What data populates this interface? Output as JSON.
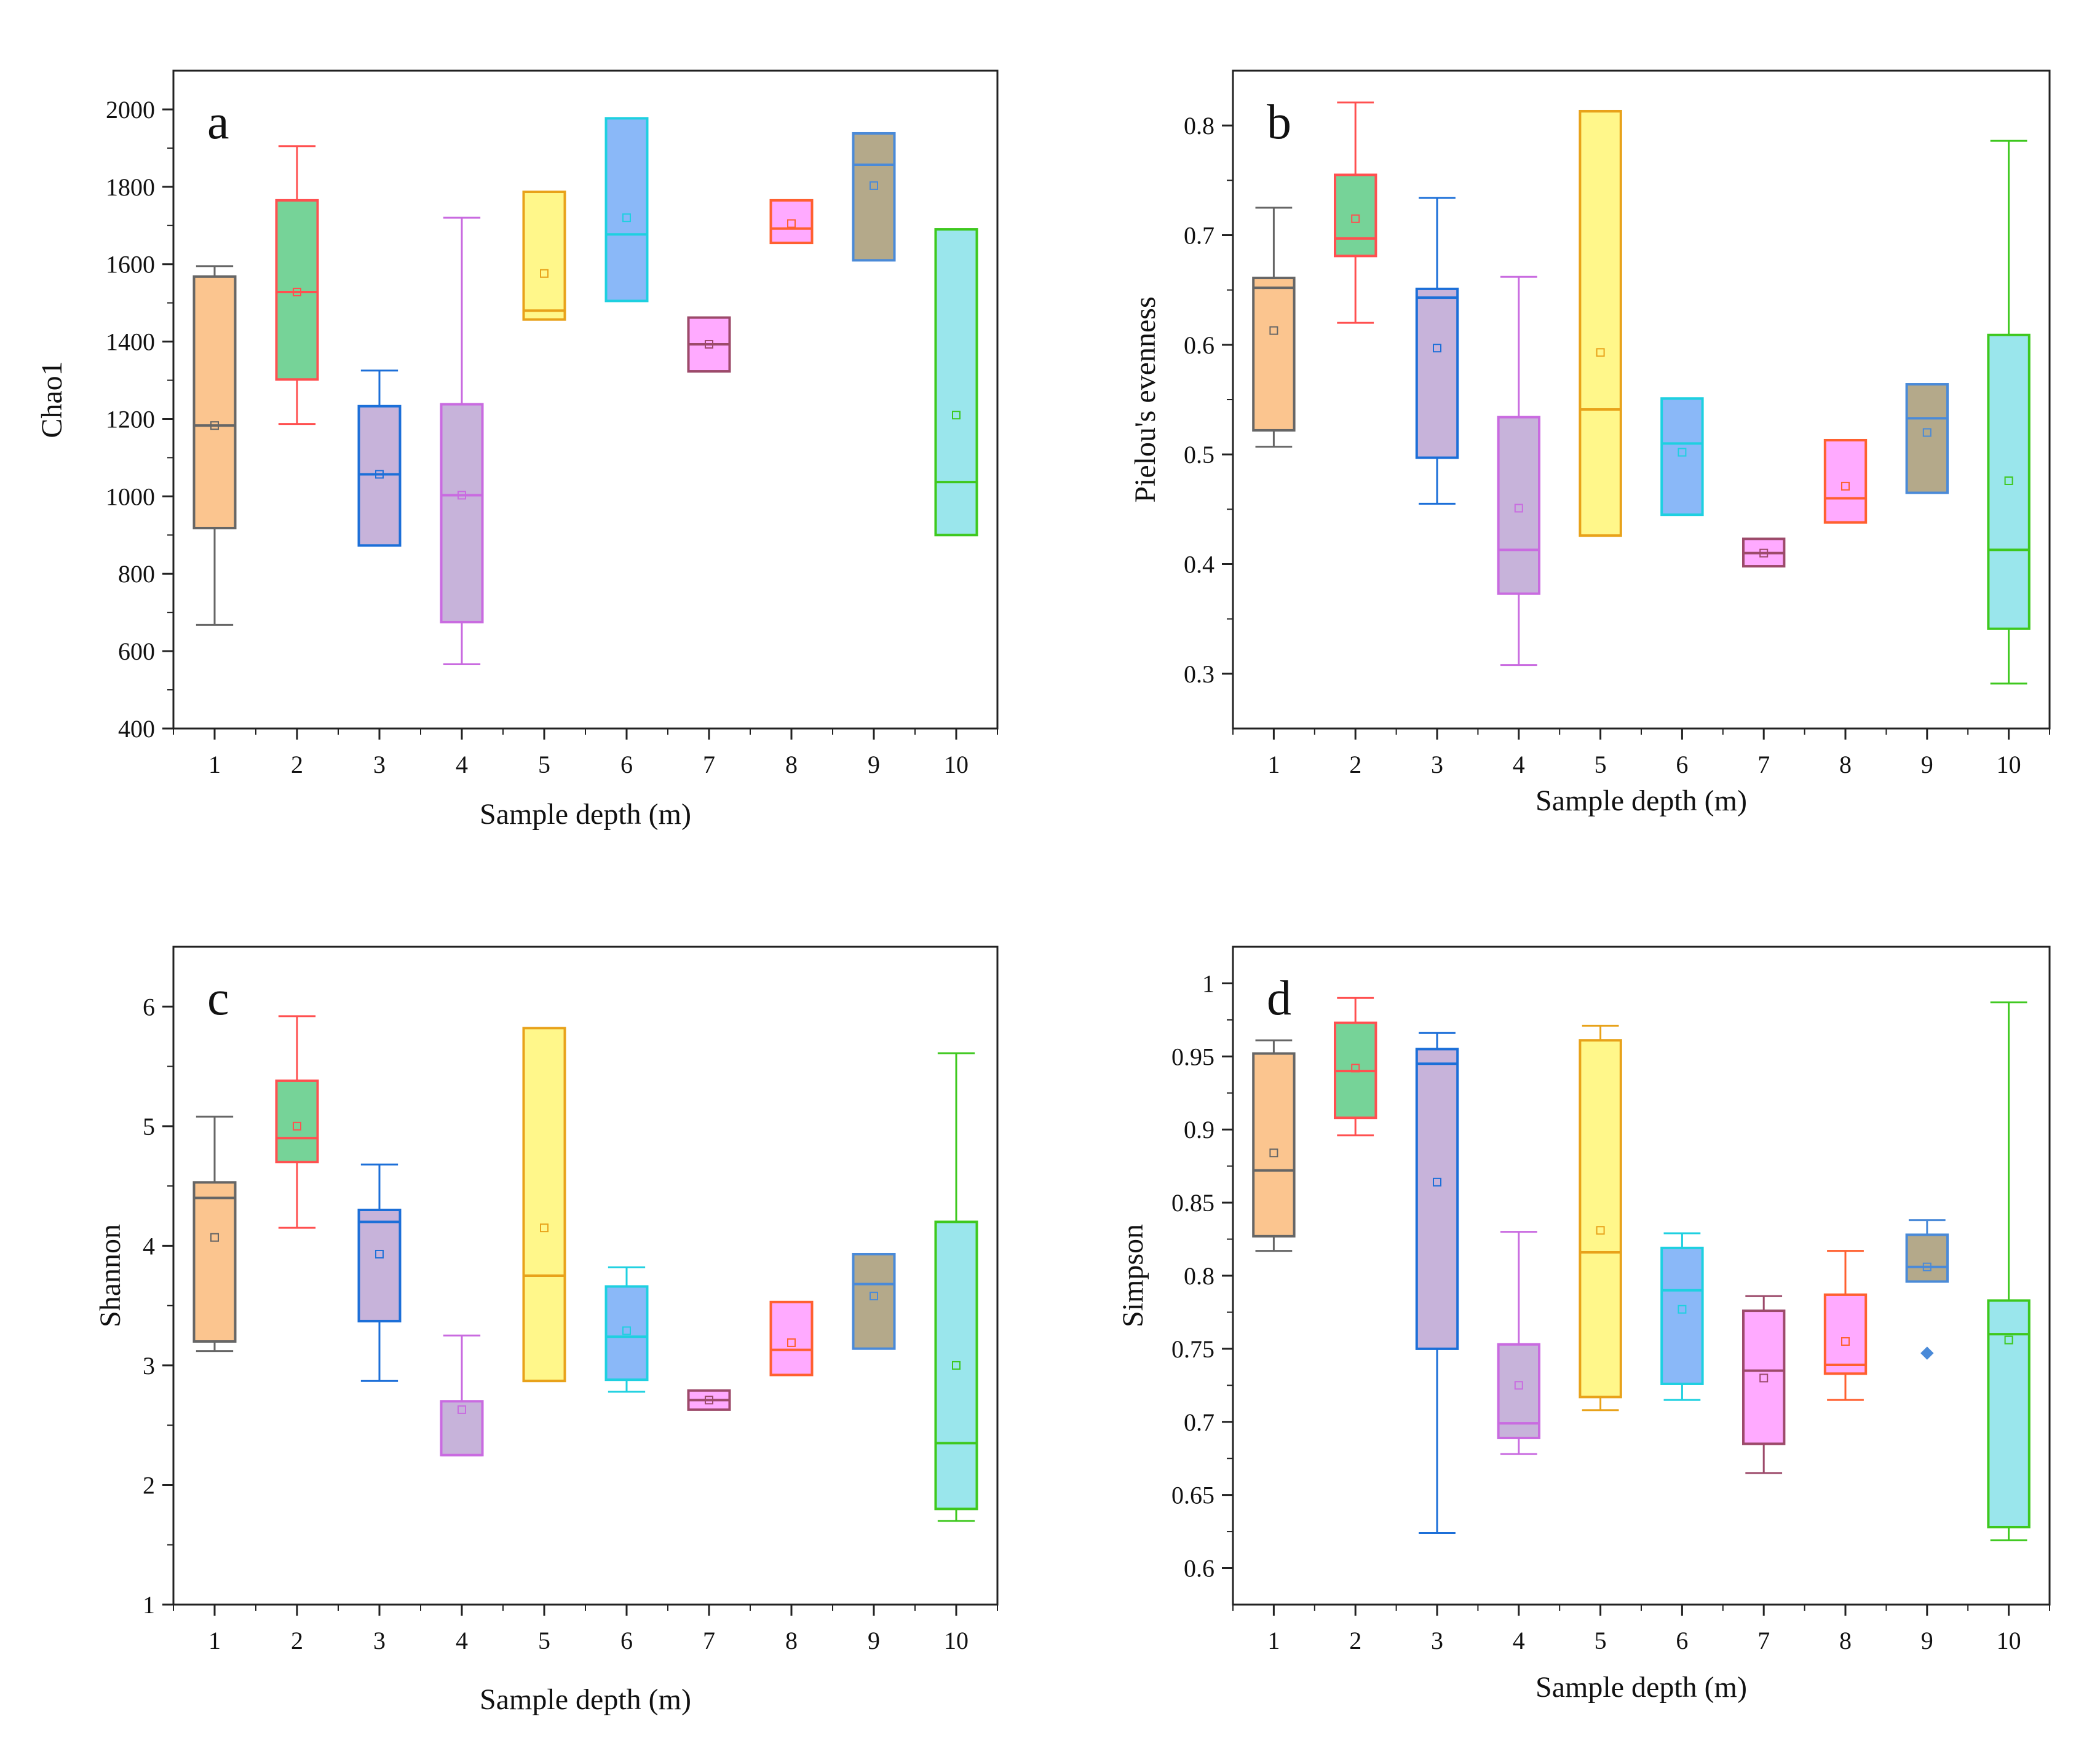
{
  "chart_data": [
    {
      "type": "box",
      "panel_label": "a",
      "xlabel": "Sample depth (m)",
      "ylabel": "Chao1",
      "ylim": [
        400,
        2100
      ],
      "yticks": [
        400,
        600,
        800,
        1000,
        1200,
        1400,
        1600,
        1800,
        2000
      ],
      "categories": [
        "1",
        "2",
        "3",
        "4",
        "5",
        "6",
        "7",
        "8",
        "9",
        "10"
      ],
      "boxes": [
        {
          "category": "1",
          "min": 668,
          "q1": 918,
          "median": 1183,
          "q3": 1568,
          "max": 1595,
          "mean": 1183,
          "fill": "#fbc58f",
          "edge": "#666666"
        },
        {
          "category": "2",
          "min": 1187,
          "q1": 1302,
          "median": 1528,
          "q3": 1765,
          "max": 1905,
          "mean": 1528,
          "fill": "#76d398",
          "edge": "#ff5050"
        },
        {
          "category": "3",
          "min": 873,
          "q1": 873,
          "median": 1057,
          "q3": 1233,
          "max": 1325,
          "mean": 1057,
          "fill": "#c7b3da",
          "edge": "#1c6fd8"
        },
        {
          "category": "4",
          "min": 566,
          "q1": 675,
          "median": 1003,
          "q3": 1238,
          "max": 1720,
          "mean": 1003,
          "fill": "#c7b3da",
          "edge": "#c96be0"
        },
        {
          "category": "5",
          "min": 1457,
          "q1": 1457,
          "median": 1480,
          "q3": 1787,
          "max": 1787,
          "mean": 1576,
          "fill": "#fff78a",
          "edge": "#e8a21a"
        },
        {
          "category": "6",
          "min": 1505,
          "q1": 1505,
          "median": 1677,
          "q3": 1977,
          "max": 1977,
          "mean": 1720,
          "fill": "#8ab8f8",
          "edge": "#1ed0e0"
        },
        {
          "category": "7",
          "min": 1323,
          "q1": 1323,
          "median": 1393,
          "q3": 1462,
          "max": 1462,
          "mean": 1393,
          "fill": "#ffaaff",
          "edge": "#9c4a6a"
        },
        {
          "category": "8",
          "min": 1655,
          "q1": 1655,
          "median": 1692,
          "q3": 1765,
          "max": 1765,
          "mean": 1705,
          "fill": "#ffaaff",
          "edge": "#ff6030"
        },
        {
          "category": "9",
          "min": 1610,
          "q1": 1610,
          "median": 1857,
          "q3": 1938,
          "max": 1938,
          "mean": 1803,
          "fill": "#b4a98a",
          "edge": "#4a8ad8"
        },
        {
          "category": "10",
          "min": 900,
          "q1": 900,
          "median": 1037,
          "q3": 1690,
          "max": 1690,
          "mean": 1210,
          "fill": "#9ae6ec",
          "edge": "#3ec81e"
        }
      ]
    },
    {
      "type": "box",
      "panel_label": "b",
      "xlabel": "Sample depth (m)",
      "ylabel": "Pielou's evenness",
      "ylim": [
        0.25,
        0.85
      ],
      "yticks": [
        0.3,
        0.4,
        0.5,
        0.6,
        0.7,
        0.8
      ],
      "categories": [
        "1",
        "2",
        "3",
        "4",
        "5",
        "6",
        "7",
        "8",
        "9",
        "10"
      ],
      "boxes": [
        {
          "category": "1",
          "min": 0.507,
          "q1": 0.522,
          "median": 0.652,
          "q3": 0.661,
          "max": 0.725,
          "mean": 0.613,
          "fill": "#fbc58f",
          "edge": "#666666"
        },
        {
          "category": "2",
          "min": 0.62,
          "q1": 0.681,
          "median": 0.697,
          "q3": 0.755,
          "max": 0.821,
          "mean": 0.715,
          "fill": "#76d398",
          "edge": "#ff5050"
        },
        {
          "category": "3",
          "min": 0.455,
          "q1": 0.497,
          "median": 0.643,
          "q3": 0.651,
          "max": 0.734,
          "mean": 0.597,
          "fill": "#c7b3da",
          "edge": "#1c6fd8"
        },
        {
          "category": "4",
          "min": 0.308,
          "q1": 0.373,
          "median": 0.413,
          "q3": 0.534,
          "max": 0.662,
          "mean": 0.451,
          "fill": "#c7b3da",
          "edge": "#c96be0"
        },
        {
          "category": "5",
          "min": 0.426,
          "q1": 0.426,
          "median": 0.541,
          "q3": 0.813,
          "max": 0.813,
          "mean": 0.593,
          "fill": "#fff78a",
          "edge": "#e8a21a"
        },
        {
          "category": "6",
          "min": 0.445,
          "q1": 0.445,
          "median": 0.51,
          "q3": 0.551,
          "max": 0.551,
          "mean": 0.502,
          "fill": "#8ab8f8",
          "edge": "#1ed0e0"
        },
        {
          "category": "7",
          "min": 0.398,
          "q1": 0.398,
          "median": 0.41,
          "q3": 0.423,
          "max": 0.423,
          "mean": 0.41,
          "fill": "#ffaaff",
          "edge": "#9c4a6a"
        },
        {
          "category": "8",
          "min": 0.438,
          "q1": 0.438,
          "median": 0.46,
          "q3": 0.513,
          "max": 0.513,
          "mean": 0.471,
          "fill": "#ffaaff",
          "edge": "#ff6030"
        },
        {
          "category": "9",
          "min": 0.465,
          "q1": 0.465,
          "median": 0.533,
          "q3": 0.564,
          "max": 0.564,
          "mean": 0.52,
          "fill": "#b4a98a",
          "edge": "#4a8ad8"
        },
        {
          "category": "10",
          "min": 0.291,
          "q1": 0.341,
          "median": 0.413,
          "q3": 0.609,
          "max": 0.786,
          "mean": 0.476,
          "fill": "#9ae6ec",
          "edge": "#3ec81e"
        }
      ]
    },
    {
      "type": "box",
      "panel_label": "c",
      "xlabel": "Sample depth (m)",
      "ylabel": "Shannon",
      "ylim": [
        1,
        6.5
      ],
      "yticks": [
        1,
        2,
        3,
        4,
        5,
        6
      ],
      "categories": [
        "1",
        "2",
        "3",
        "4",
        "5",
        "6",
        "7",
        "8",
        "9",
        "10"
      ],
      "boxes": [
        {
          "category": "1",
          "min": 3.12,
          "q1": 3.2,
          "median": 4.4,
          "q3": 4.53,
          "max": 5.08,
          "mean": 4.07,
          "fill": "#fbc58f",
          "edge": "#666666"
        },
        {
          "category": "2",
          "min": 4.15,
          "q1": 4.7,
          "median": 4.9,
          "q3": 5.38,
          "max": 5.92,
          "mean": 5.0,
          "fill": "#76d398",
          "edge": "#ff5050"
        },
        {
          "category": "3",
          "min": 2.87,
          "q1": 3.37,
          "median": 4.2,
          "q3": 4.3,
          "max": 4.68,
          "mean": 3.93,
          "fill": "#c7b3da",
          "edge": "#1c6fd8"
        },
        {
          "category": "4",
          "min": 2.25,
          "q1": 2.25,
          "median": 2.25,
          "q3": 2.7,
          "max": 3.25,
          "mean": 2.63,
          "fill": "#c7b3da",
          "edge": "#c96be0"
        },
        {
          "category": "5",
          "min": 2.87,
          "q1": 2.87,
          "median": 3.75,
          "q3": 5.82,
          "max": 5.82,
          "mean": 4.15,
          "fill": "#fff78a",
          "edge": "#e8a21a"
        },
        {
          "category": "6",
          "min": 2.78,
          "q1": 2.88,
          "median": 3.24,
          "q3": 3.66,
          "max": 3.82,
          "mean": 3.29,
          "fill": "#8ab8f8",
          "edge": "#1ed0e0"
        },
        {
          "category": "7",
          "min": 2.63,
          "q1": 2.63,
          "median": 2.71,
          "q3": 2.79,
          "max": 2.79,
          "mean": 2.71,
          "fill": "#ffaaff",
          "edge": "#9c4a6a"
        },
        {
          "category": "8",
          "min": 2.92,
          "q1": 2.92,
          "median": 3.13,
          "q3": 3.53,
          "max": 3.53,
          "mean": 3.19,
          "fill": "#ffaaff",
          "edge": "#ff6030"
        },
        {
          "category": "9",
          "min": 3.14,
          "q1": 3.14,
          "median": 3.68,
          "q3": 3.93,
          "max": 3.93,
          "mean": 3.58,
          "fill": "#b4a98a",
          "edge": "#4a8ad8"
        },
        {
          "category": "10",
          "min": 1.7,
          "q1": 1.8,
          "median": 2.35,
          "q3": 4.2,
          "max": 5.61,
          "mean": 3.0,
          "fill": "#9ae6ec",
          "edge": "#3ec81e"
        }
      ]
    },
    {
      "type": "box",
      "panel_label": "d",
      "xlabel": "Sample depth (m)",
      "ylabel": "Simpson",
      "ylim": [
        0.575,
        1.025
      ],
      "yticks": [
        0.6,
        0.65,
        0.7,
        0.75,
        0.8,
        0.85,
        0.9,
        0.95,
        1
      ],
      "ytick_labels": [
        "0.6",
        "0.65",
        "0.7",
        "0.75",
        "0.8",
        "0.85",
        "0.9",
        "0.95",
        "1"
      ],
      "categories": [
        "1",
        "2",
        "3",
        "4",
        "5",
        "6",
        "7",
        "8",
        "9",
        "10"
      ],
      "boxes": [
        {
          "category": "1",
          "min": 0.817,
          "q1": 0.827,
          "median": 0.872,
          "q3": 0.952,
          "max": 0.961,
          "mean": 0.884,
          "fill": "#fbc58f",
          "edge": "#666666"
        },
        {
          "category": "2",
          "min": 0.896,
          "q1": 0.908,
          "median": 0.94,
          "q3": 0.973,
          "max": 0.99,
          "mean": 0.942,
          "fill": "#76d398",
          "edge": "#ff5050"
        },
        {
          "category": "3",
          "min": 0.624,
          "q1": 0.75,
          "median": 0.945,
          "q3": 0.955,
          "max": 0.966,
          "mean": 0.864,
          "fill": "#c7b3da",
          "edge": "#1c6fd8"
        },
        {
          "category": "4",
          "min": 0.678,
          "q1": 0.689,
          "median": 0.699,
          "q3": 0.753,
          "max": 0.83,
          "mean": 0.725,
          "fill": "#c7b3da",
          "edge": "#c96be0"
        },
        {
          "category": "5",
          "min": 0.708,
          "q1": 0.717,
          "median": 0.816,
          "q3": 0.961,
          "max": 0.971,
          "mean": 0.831,
          "fill": "#fff78a",
          "edge": "#e8a21a"
        },
        {
          "category": "6",
          "min": 0.715,
          "q1": 0.726,
          "median": 0.79,
          "q3": 0.819,
          "max": 0.829,
          "mean": 0.777,
          "fill": "#8ab8f8",
          "edge": "#1ed0e0"
        },
        {
          "category": "7",
          "min": 0.665,
          "q1": 0.685,
          "median": 0.735,
          "q3": 0.776,
          "max": 0.786,
          "mean": 0.73,
          "fill": "#ffaaff",
          "edge": "#9c4a6a"
        },
        {
          "category": "8",
          "min": 0.715,
          "q1": 0.733,
          "median": 0.739,
          "q3": 0.787,
          "max": 0.817,
          "mean": 0.755,
          "fill": "#ffaaff",
          "edge": "#ff6030"
        },
        {
          "category": "9",
          "min": 0.796,
          "q1": 0.796,
          "median": 0.806,
          "q3": 0.828,
          "max": 0.838,
          "mean": 0.806,
          "outliers": [
            0.747
          ],
          "fill": "#b4a98a",
          "edge": "#4a8ad8"
        },
        {
          "category": "10",
          "min": 0.619,
          "q1": 0.628,
          "median": 0.76,
          "q3": 0.783,
          "max": 0.987,
          "mean": 0.756,
          "fill": "#9ae6ec",
          "edge": "#3ec81e"
        }
      ]
    }
  ]
}
